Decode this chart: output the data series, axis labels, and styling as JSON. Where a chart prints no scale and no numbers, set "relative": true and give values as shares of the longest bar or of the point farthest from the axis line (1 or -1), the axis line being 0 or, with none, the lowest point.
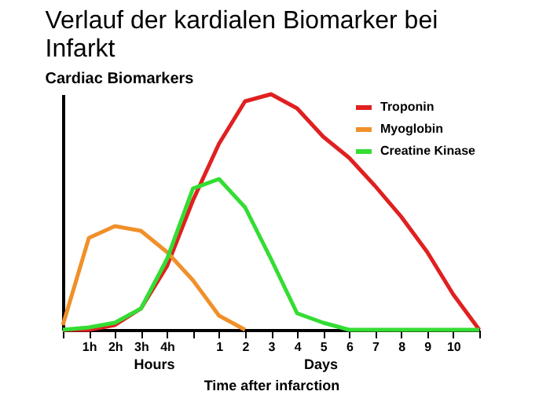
{
  "chart_data": {
    "type": "line",
    "title": "Verlauf der kardialen Biomarker bei Infarkt",
    "subtitle": "Cardiac Biomarkers",
    "xlabel": "Time after infarction",
    "annotations": [
      "Hours",
      "Days"
    ],
    "categories": [
      null,
      "1h",
      "2h",
      "3h",
      "4h",
      null,
      "1",
      "2",
      "3",
      "4",
      "5",
      "6",
      "7",
      "8",
      "9",
      "10",
      null
    ],
    "relative": true,
    "grid": false,
    "legend": "top right",
    "marker": "none",
    "line_style": "solid",
    "series": [
      {
        "name": "Troponin",
        "color": "#e02020",
        "values": [
          0,
          0,
          0.02,
          0.09,
          0.27,
          0.55,
          0.79,
          0.97,
          1.0,
          0.94,
          0.82,
          0.73,
          0.61,
          0.48,
          0.33,
          0.15,
          0
        ]
      },
      {
        "name": "Myoglobin",
        "color": "#f0902a",
        "values": [
          0.02,
          0.39,
          0.44,
          0.42,
          0.33,
          0.21,
          0.06,
          0,
          null,
          null,
          null,
          null,
          null,
          null,
          null,
          null,
          null
        ]
      },
      {
        "name": "Creatine Kinase",
        "color": "#33dd33",
        "values": [
          0,
          0.01,
          0.03,
          0.09,
          0.3,
          0.6,
          0.64,
          0.52,
          0.3,
          0.07,
          0.03,
          0,
          0,
          0,
          0,
          0,
          0
        ]
      }
    ]
  }
}
